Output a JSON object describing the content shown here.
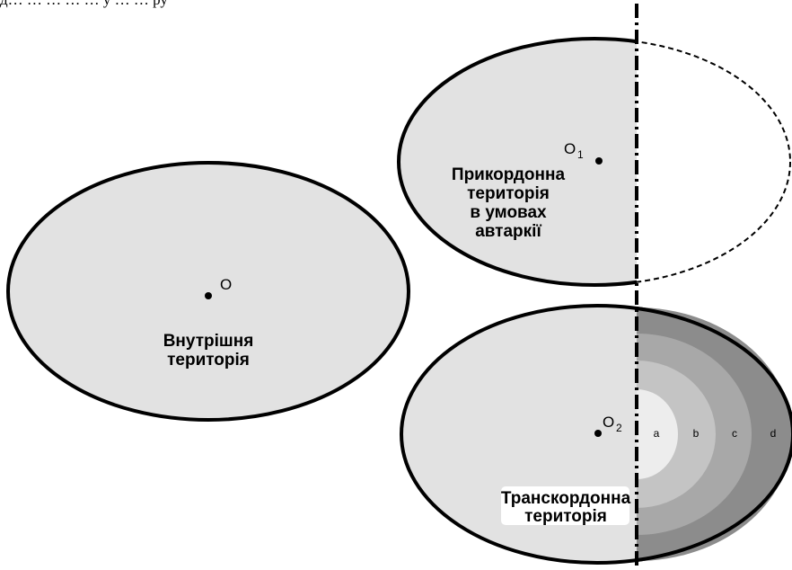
{
  "top_caption": "д…     …                    …          …      … у  …                 … ру",
  "colors": {
    "fill_light": "#e2e2e2",
    "zone_a": "#ededed",
    "zone_b": "#c4c4c4",
    "zone_c": "#a8a8a8",
    "zone_d": "#8c8c8c",
    "stroke": "#000000"
  },
  "center_main": {
    "label": "O"
  },
  "center_top": {
    "label": "O",
    "subscript": "1"
  },
  "center_bottom": {
    "label": "O",
    "subscript": "2"
  },
  "inner_territory": {
    "lines": [
      "Внутрішня",
      "територія"
    ]
  },
  "border_territory": {
    "lines": [
      "Прикордонна",
      "територія",
      "в умовах",
      "автаркії"
    ]
  },
  "transborder_territory": {
    "lines": [
      "Транскордонна",
      "територія"
    ]
  },
  "zones": [
    "a",
    "b",
    "c",
    "d"
  ]
}
